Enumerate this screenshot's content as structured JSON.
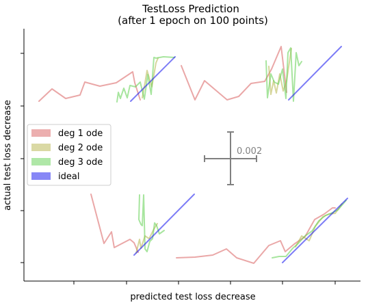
{
  "chart_data": {
    "type": "line",
    "title": "TestLoss Prediction",
    "subtitle": "(after 1 epoch on 100 points)",
    "xlabel": "predicted test loss decrease",
    "ylabel": "actual test loss decrease",
    "grid": false,
    "legend_position": "center-left",
    "scale_bar_label": "0.002",
    "legend": [
      {
        "name": "deg 1 ode",
        "color": "#d95f5f"
      },
      {
        "name": "deg 2 ode",
        "color": "#b5b44a"
      },
      {
        "name": "deg 3 ode",
        "color": "#5fcf4f"
      },
      {
        "name": "ideal",
        "color": "#1010ee"
      }
    ],
    "series": [
      {
        "name": "deg 1 ode",
        "color": "#d95f5f",
        "segments": [
          [
            [
              57,
              148
            ],
            [
              76,
              130
            ],
            [
              96,
              144
            ],
            [
              117,
              139
            ],
            [
              124,
              120
            ],
            [
              146,
              126
            ],
            [
              170,
              121
            ],
            [
              194,
              105
            ],
            [
              197,
              121
            ],
            [
              205,
              146
            ]
          ],
          [
            [
              265,
              96
            ],
            [
              285,
              146
            ],
            [
              299,
              118
            ],
            [
              332,
              146
            ],
            [
              349,
              141
            ],
            [
              367,
              122
            ],
            [
              387,
              119
            ],
            [
              397,
              101
            ],
            [
              411,
              68
            ],
            [
              419,
              135
            ]
          ],
          [
            [
              133,
              284
            ],
            [
              152,
              356
            ],
            [
              163,
              339
            ],
            [
              167,
              362
            ],
            [
              190,
              350
            ],
            [
              196,
              355
            ],
            [
              202,
              369
            ]
          ],
          [
            [
              258,
              377
            ],
            [
              285,
              376
            ],
            [
              311,
              373
            ],
            [
              331,
              364
            ],
            [
              346,
              377
            ],
            [
              371,
              385
            ],
            [
              393,
              359
            ],
            [
              410,
              352
            ],
            [
              417,
              368
            ],
            [
              430,
              357
            ],
            [
              446,
              346
            ],
            [
              460,
              321
            ],
            [
              474,
              313
            ],
            [
              486,
              304
            ],
            [
              490,
              304
            ]
          ]
        ]
      },
      {
        "name": "deg 2 ode",
        "color": "#b5b44a",
        "segments": [
          [
            [
              208,
              143
            ],
            [
              212,
              121
            ],
            [
              215,
              103
            ],
            [
              222,
              127
            ],
            [
              228,
              92
            ],
            [
              231,
              85
            ]
          ],
          [
            [
              393,
              97
            ],
            [
              396,
              138
            ],
            [
              400,
              118
            ],
            [
              404,
              136
            ],
            [
              409,
              108
            ],
            [
              414,
              133
            ],
            [
              419,
              118
            ],
            [
              426,
              71
            ]
          ],
          [
            [
              199,
              370
            ],
            [
              204,
              350
            ],
            [
              206,
              363
            ],
            [
              212,
              345
            ],
            [
              218,
              349
            ],
            [
              225,
              335
            ],
            [
              230,
              327
            ]
          ],
          [
            [
              432,
              361
            ],
            [
              441,
              345
            ],
            [
              452,
              352
            ],
            [
              461,
              331
            ],
            [
              472,
              317
            ],
            [
              481,
              313
            ],
            [
              490,
              312
            ],
            [
              500,
              298
            ]
          ]
        ]
      },
      {
        "name": "deg 3 ode",
        "color": "#5fcf4f",
        "segments": [
          [
            [
              171,
              149
            ],
            [
              173,
              135
            ],
            [
              176,
              144
            ],
            [
              181,
              129
            ],
            [
              186,
              143
            ],
            [
              190,
              125
            ],
            [
              198,
              127
            ],
            [
              205,
              120
            ],
            [
              211,
              145
            ],
            [
              216,
              109
            ],
            [
              221,
              138
            ],
            [
              225,
              84
            ],
            [
              228,
              85
            ],
            [
              239,
              83
            ],
            [
              255,
              84
            ]
          ],
          [
            [
              389,
              89
            ],
            [
              391,
              143
            ],
            [
              396,
              108
            ],
            [
              401,
              120
            ],
            [
              407,
              123
            ],
            [
              413,
              101
            ],
            [
              418,
              144
            ],
            [
              421,
              77
            ],
            [
              425,
              70
            ],
            [
              429,
              148
            ],
            [
              433,
              77
            ],
            [
              437,
              96
            ],
            [
              441,
              90
            ]
          ],
          [
            [
              204,
              285
            ],
            [
              203,
              321
            ],
            [
              206,
              328
            ],
            [
              208,
              330
            ],
            [
              210,
              285
            ],
            [
              212,
              364
            ],
            [
              215,
              368
            ],
            [
              219,
              353
            ],
            [
              223,
              349
            ],
            [
              226,
              326
            ],
            [
              229,
              330
            ],
            [
              233,
              342
            ],
            [
              240,
              337
            ]
          ],
          [
            [
              398,
              377
            ],
            [
              408,
              375
            ],
            [
              418,
              375
            ],
            [
              428,
              363
            ],
            [
              436,
              356
            ],
            [
              446,
              345
            ],
            [
              456,
              338
            ],
            [
              466,
              323
            ],
            [
              476,
              315
            ],
            [
              486,
              311
            ],
            [
              494,
              307
            ],
            [
              506,
              293
            ]
          ]
        ]
      },
      {
        "name": "ideal",
        "color": "#1010ee",
        "segments": [
          [
            [
              191,
              148
            ],
            [
              256,
              83
            ]
          ],
          [
            [
              422,
              146
            ],
            [
              499,
              68
            ]
          ],
          [
            [
              196,
              373
            ],
            [
              284,
              284
            ]
          ],
          [
            [
              413,
              384
            ],
            [
              508,
              290
            ]
          ]
        ]
      }
    ]
  }
}
